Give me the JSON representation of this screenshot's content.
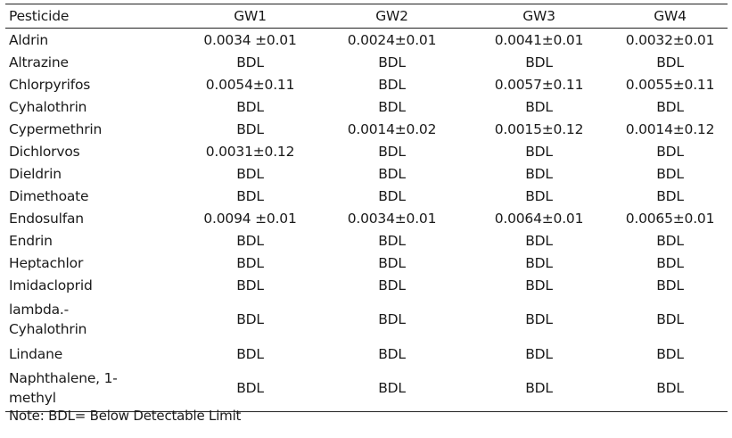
{
  "table": {
    "headers": [
      "Pesticide",
      "GW1",
      "GW2",
      "GW3",
      "GW4"
    ],
    "rows": [
      {
        "name": "Aldrin",
        "values": [
          "0.0034 ±0.01",
          "0.0024±0.01",
          "0.0041±0.01",
          "0.0032±0.01"
        ]
      },
      {
        "name": "Altrazine",
        "values": [
          "BDL",
          "BDL",
          "BDL",
          "BDL"
        ]
      },
      {
        "name": "Chlorpyrifos",
        "values": [
          "0.0054±0.11",
          "BDL",
          "0.0057±0.11",
          "0.0055±0.11"
        ]
      },
      {
        "name": "Cyhalothrin",
        "values": [
          "BDL",
          "BDL",
          "BDL",
          "BDL"
        ]
      },
      {
        "name": "Cypermethrin",
        "values": [
          "BDL",
          "0.0014±0.02",
          "0.0015±0.12",
          "0.0014±0.12"
        ]
      },
      {
        "name": "Dichlorvos",
        "values": [
          "0.0031±0.12",
          "BDL",
          "BDL",
          "BDL"
        ]
      },
      {
        "name": "Dieldrin",
        "values": [
          "BDL",
          "BDL",
          "BDL",
          "BDL"
        ]
      },
      {
        "name": "Dimethoate",
        "values": [
          "BDL",
          "BDL",
          "BDL",
          "BDL"
        ]
      },
      {
        "name": "Endosulfan",
        "values": [
          "0.0094 ±0.01",
          "0.0034±0.01",
          "0.0064±0.01",
          "0.0065±0.01"
        ]
      },
      {
        "name": "Endrin",
        "values": [
          "BDL",
          "BDL",
          "BDL",
          "BDL"
        ]
      },
      {
        "name": "Heptachlor",
        "values": [
          "BDL",
          "BDL",
          "BDL",
          "BDL"
        ]
      },
      {
        "name": "Imidacloprid",
        "values": [
          "BDL",
          "BDL",
          "BDL",
          "BDL"
        ]
      },
      {
        "name": "lambda.-\nCyhalothrin",
        "values": [
          "BDL",
          "BDL",
          "BDL",
          "BDL"
        ],
        "tall": true
      },
      {
        "name": "Lindane",
        "values": [
          "BDL",
          "BDL",
          "BDL",
          "BDL"
        ]
      },
      {
        "name": "Naphthalene, 1-\nmethyl",
        "values": [
          "BDL",
          "BDL",
          "BDL",
          "BDL"
        ],
        "tall": true
      }
    ]
  },
  "note": "Note: BDL= Below Detectable Limit"
}
